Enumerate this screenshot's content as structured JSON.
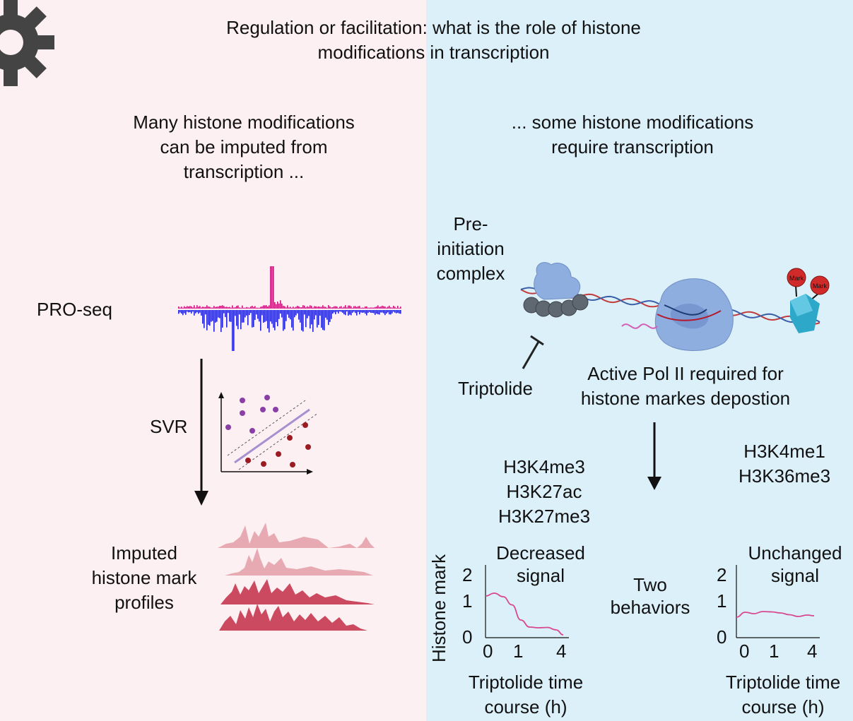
{
  "title": [
    "Regulation or facilitation: what is the role of histone",
    "modifications in transcription"
  ],
  "left": {
    "heading": [
      "Many histone modifications",
      "can be imputed from",
      "transcription ..."
    ],
    "pro_seq_label": "PRO-seq",
    "svr_label": "SVR",
    "imputed_label": [
      "Imputed",
      "histone mark",
      "profiles"
    ]
  },
  "right": {
    "heading": [
      "... some histone modifications",
      "require transcription"
    ],
    "pic_label": [
      "Pre-",
      "initiation",
      "complex"
    ],
    "triptolide_label": "Triptolide",
    "polii_label": [
      "Active Pol II required for",
      "histone markes depostion"
    ],
    "mark_labels": [
      "Mark",
      "Mark"
    ],
    "group_a_marks": [
      "H3K4me3",
      "H3K27ac",
      "H3K27me3"
    ],
    "group_b_marks": [
      "H3K4me1",
      "H3K36me3"
    ],
    "two_behaviors": [
      "Two",
      "behaviors"
    ]
  },
  "chart_data": [
    {
      "type": "line",
      "title": [
        "Decreased",
        "signal"
      ],
      "ylabel": "Histone mark",
      "xlabel": [
        "Triptolide time",
        "course (h)"
      ],
      "x_ticks": [
        "0",
        "1",
        "4"
      ],
      "y_ticks": [
        "0",
        "1",
        "2"
      ],
      "ylim": [
        0,
        2
      ],
      "series": [
        {
          "x": [
            0,
            0.5,
            1,
            1.5,
            2,
            2.5,
            3,
            3.5,
            4,
            4.4
          ],
          "values": [
            1.3,
            1.38,
            1.28,
            1.05,
            0.62,
            0.42,
            0.4,
            0.41,
            0.34,
            0.2
          ]
        }
      ]
    },
    {
      "type": "line",
      "title": [
        "Unchanged",
        "signal"
      ],
      "xlabel": [
        "Triptolide time",
        "course (h)"
      ],
      "x_ticks": [
        "0",
        "1",
        "4"
      ],
      "y_ticks": [
        "0",
        "1",
        "2"
      ],
      "ylim": [
        0,
        2
      ],
      "series": [
        {
          "x": [
            0,
            0.5,
            1,
            1.5,
            2,
            2.5,
            3,
            3.5,
            4,
            4.4
          ],
          "values": [
            0.7,
            0.84,
            0.8,
            0.86,
            0.85,
            0.82,
            0.77,
            0.72,
            0.76,
            0.74
          ]
        }
      ]
    }
  ],
  "colors": {
    "left_bg": "#fdf0f3",
    "right_bg": "#dcf0fa",
    "plus_strand": "#c2187a",
    "minus_strand": "#2323d8",
    "purple_dot": "#8a3fa6",
    "red_dot": "#9b1b22",
    "line": "#d8488f",
    "mark": "#d12a2a"
  }
}
